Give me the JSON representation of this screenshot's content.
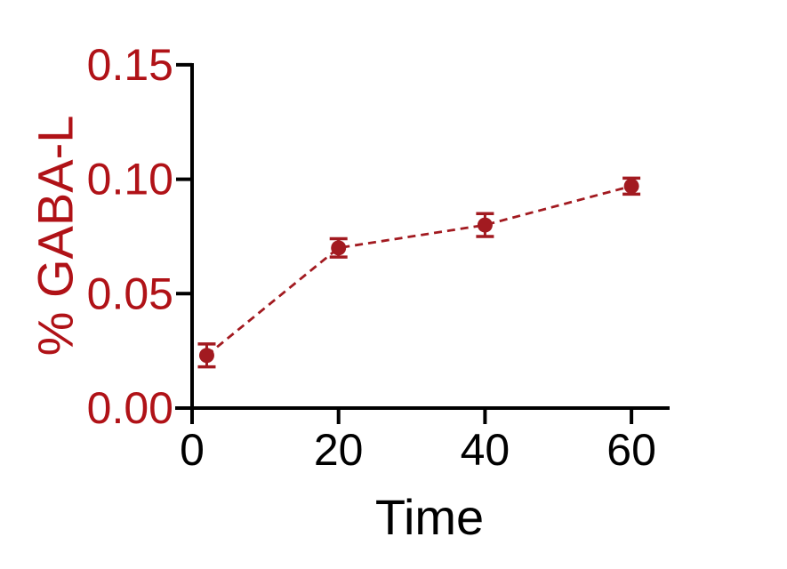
{
  "chart_data": {
    "type": "line",
    "title": "",
    "xlabel": "Time",
    "ylabel": "% GABA-L",
    "xlim": [
      -2.3,
      65.2
    ],
    "ylim": [
      0,
      0.15
    ],
    "grid": false,
    "legend": "none",
    "x_ticks": [
      0,
      20,
      40,
      60
    ],
    "x_tick_labels": [
      "0",
      "20",
      "40",
      "60"
    ],
    "y_ticks": [
      0,
      0.05,
      0.1,
      0.15
    ],
    "y_tick_labels": [
      "0.00",
      "0.05",
      "0.10",
      "0.15"
    ],
    "series": [
      {
        "name": "% GABA-L",
        "x": [
          2,
          20,
          40,
          60
        ],
        "y": [
          0.023,
          0.07,
          0.08,
          0.097
        ],
        "yerr": [
          0.005,
          0.004,
          0.005,
          0.0035
        ],
        "line_style": "dashed",
        "marker": "filled-circle",
        "color": "#A21A20"
      }
    ],
    "colors": {
      "background": "#FFFFFF",
      "axis": "#000000",
      "x_tick_labels": "#000000",
      "y_tick_labels": "#B01217",
      "xlabel": "#000000",
      "ylabel": "#B01217",
      "series": "#A21A20"
    }
  }
}
